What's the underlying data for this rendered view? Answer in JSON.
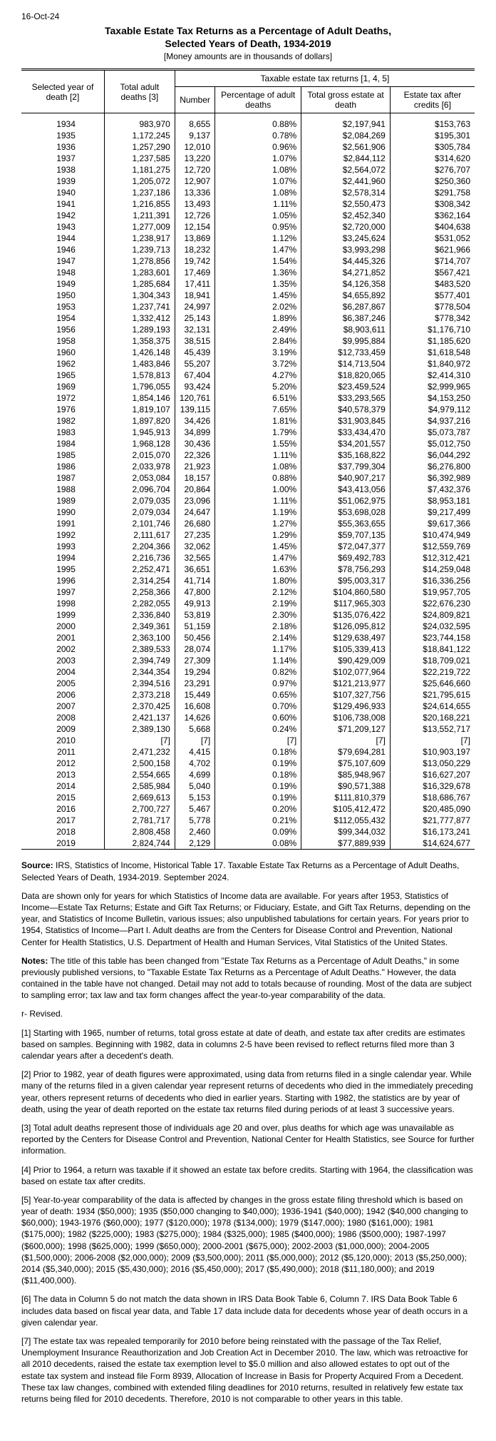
{
  "date": "16-Oct-24",
  "title_line1": "Taxable Estate Tax Returns as a Percentage of Adult Deaths,",
  "title_line2": "Selected Years of Death, 1934-2019",
  "subtitle": "[Money amounts are in thousands of dollars]",
  "headers": {
    "col1": "Selected year of death [2]",
    "col2": "Total adult deaths [3]",
    "group": "Taxable estate tax returns [1, 4, 5]",
    "g1": "Number",
    "g2": "Percentage of adult deaths",
    "g3": "Total gross estate at death",
    "g4": "Estate tax after credits [6]"
  },
  "rows": [
    [
      "1934",
      "983,970",
      "8,655",
      "0.88%",
      "$2,197,941",
      "$153,763"
    ],
    [
      "1935",
      "1,172,245",
      "9,137",
      "0.78%",
      "$2,084,269",
      "$195,301"
    ],
    [
      "1936",
      "1,257,290",
      "12,010",
      "0.96%",
      "$2,561,906",
      "$305,784"
    ],
    [
      "1937",
      "1,237,585",
      "13,220",
      "1.07%",
      "$2,844,112",
      "$314,620"
    ],
    [
      "1938",
      "1,181,275",
      "12,720",
      "1.08%",
      "$2,564,072",
      "$276,707"
    ],
    [
      "1939",
      "1,205,072",
      "12,907",
      "1.07%",
      "$2,441,960",
      "$250,360"
    ],
    [
      "1940",
      "1,237,186",
      "13,336",
      "1.08%",
      "$2,578,314",
      "$291,758"
    ],
    [
      "1941",
      "1,216,855",
      "13,493",
      "1.11%",
      "$2,550,473",
      "$308,342"
    ],
    [
      "1942",
      "1,211,391",
      "12,726",
      "1.05%",
      "$2,452,340",
      "$362,164"
    ],
    [
      "1943",
      "1,277,009",
      "12,154",
      "0.95%",
      "$2,720,000",
      "$404,638"
    ],
    [
      "1944",
      "1,238,917",
      "13,869",
      "1.12%",
      "$3,245,624",
      "$531,052"
    ],
    [
      "1946",
      "1,239,713",
      "18,232",
      "1.47%",
      "$3,993,298",
      "$621,966"
    ],
    [
      "1947",
      "1,278,856",
      "19,742",
      "1.54%",
      "$4,445,326",
      "$714,707"
    ],
    [
      "1948",
      "1,283,601",
      "17,469",
      "1.36%",
      "$4,271,852",
      "$567,421"
    ],
    [
      "1949",
      "1,285,684",
      "17,411",
      "1.35%",
      "$4,126,358",
      "$483,520"
    ],
    [
      "1950",
      "1,304,343",
      "18,941",
      "1.45%",
      "$4,655,892",
      "$577,401"
    ],
    [
      "1953",
      "1,237,741",
      "24,997",
      "2.02%",
      "$6,287,867",
      "$778,504"
    ],
    [
      "1954",
      "1,332,412",
      "25,143",
      "1.89%",
      "$6,387,246",
      "$778,342"
    ],
    [
      "1956",
      "1,289,193",
      "32,131",
      "2.49%",
      "$8,903,611",
      "$1,176,710"
    ],
    [
      "1958",
      "1,358,375",
      "38,515",
      "2.84%",
      "$9,995,884",
      "$1,185,620"
    ],
    [
      "1960",
      "1,426,148",
      "45,439",
      "3.19%",
      "$12,733,459",
      "$1,618,548"
    ],
    [
      "1962",
      "1,483,846",
      "55,207",
      "3.72%",
      "$14,713,504",
      "$1,840,972"
    ],
    [
      "1965",
      "1,578,813",
      "67,404",
      "4.27%",
      "$18,820,065",
      "$2,414,310"
    ],
    [
      "1969",
      "1,796,055",
      "93,424",
      "5.20%",
      "$23,459,524",
      "$2,999,965"
    ],
    [
      "1972",
      "1,854,146",
      "120,761",
      "6.51%",
      "$33,293,565",
      "$4,153,250"
    ],
    [
      "1976",
      "1,819,107",
      "139,115",
      "7.65%",
      "$40,578,379",
      "$4,979,112"
    ],
    [
      "1982",
      "1,897,820",
      "34,426",
      "1.81%",
      "$31,903,845",
      "$4,937,216"
    ],
    [
      "1983",
      "1,945,913",
      "34,899",
      "1.79%",
      "$33,434,470",
      "$5,073,787"
    ],
    [
      "1984",
      "1,968,128",
      "30,436",
      "1.55%",
      "$34,201,557",
      "$5,012,750"
    ],
    [
      "1985",
      "2,015,070",
      "22,326",
      "1.11%",
      "$35,168,822",
      "$6,044,292"
    ],
    [
      "1986",
      "2,033,978",
      "21,923",
      "1.08%",
      "$37,799,304",
      "$6,276,800"
    ],
    [
      "1987",
      "2,053,084",
      "18,157",
      "0.88%",
      "$40,907,217",
      "$6,392,989"
    ],
    [
      "1988",
      "2,096,704",
      "20,864",
      "1.00%",
      "$43,413,056",
      "$7,432,376"
    ],
    [
      "1989",
      "2,079,035",
      "23,096",
      "1.11%",
      "$51,062,975",
      "$8,953,181"
    ],
    [
      "1990",
      "2,079,034",
      "24,647",
      "1.19%",
      "$53,698,028",
      "$9,217,499"
    ],
    [
      "1991",
      "2,101,746",
      "26,680",
      "1.27%",
      "$55,363,655",
      "$9,617,366"
    ],
    [
      "1992",
      "2,111,617",
      "27,235",
      "1.29%",
      "$59,707,135",
      "$10,474,949"
    ],
    [
      "1993",
      "2,204,366",
      "32,062",
      "1.45%",
      "$72,047,377",
      "$12,559,769"
    ],
    [
      "1994",
      "2,216,736",
      "32,565",
      "1.47%",
      "$69,492,783",
      "$12,312,421"
    ],
    [
      "1995",
      "2,252,471",
      "36,651",
      "1.63%",
      "$78,756,293",
      "$14,259,048"
    ],
    [
      "1996",
      "2,314,254",
      "41,714",
      "1.80%",
      "$95,003,317",
      "$16,336,256"
    ],
    [
      "1997",
      "2,258,366",
      "47,800",
      "2.12%",
      "$104,860,580",
      "$19,957,705"
    ],
    [
      "1998",
      "2,282,055",
      "49,913",
      "2.19%",
      "$117,965,303",
      "$22,676,230"
    ],
    [
      "1999",
      "2,336,840",
      "53,819",
      "2.30%",
      "$135,076,422",
      "$24,809,821"
    ],
    [
      "2000",
      "2,349,361",
      "51,159",
      "2.18%",
      "$126,095,812",
      "$24,032,595"
    ],
    [
      "2001",
      "2,363,100",
      "50,456",
      "2.14%",
      "$129,638,497",
      "$23,744,158"
    ],
    [
      "2002",
      "2,389,533",
      "28,074",
      "1.17%",
      "$105,339,413",
      "$18,841,122"
    ],
    [
      "2003",
      "2,394,749",
      "27,309",
      "1.14%",
      "$90,429,009",
      "$18,709,021"
    ],
    [
      "2004",
      "2,344,354",
      "19,294",
      "0.82%",
      "$102,077,964",
      "$22,219,722"
    ],
    [
      "2005",
      "2,394,516",
      "23,291",
      "0.97%",
      "$121,213,977",
      "$25,646,660"
    ],
    [
      "2006",
      "2,373,218",
      "15,449",
      "0.65%",
      "$107,327,756",
      "$21,795,615"
    ],
    [
      "2007",
      "2,370,425",
      "16,608",
      "0.70%",
      "$129,496,933",
      "$24,614,655"
    ],
    [
      "2008",
      "2,421,137",
      "14,626",
      "0.60%",
      "$106,738,008",
      "$20,168,221"
    ],
    [
      "2009",
      "2,389,130",
      "5,668",
      "0.24%",
      "$71,209,127",
      "$13,552,717"
    ],
    [
      "2010",
      "[7]",
      "[7]",
      "[7]",
      "[7]",
      "[7]"
    ],
    [
      "2011",
      "2,471,232",
      "4,415",
      "0.18%",
      "$79,694,281",
      "$10,903,197"
    ],
    [
      "2012",
      "2,500,158",
      "4,702",
      "0.19%",
      "$75,107,609",
      "$13,050,229"
    ],
    [
      "2013",
      "2,554,665",
      "4,699",
      "0.18%",
      "$85,948,967",
      "$16,627,207"
    ],
    [
      "2014",
      "2,585,984",
      "5,040",
      "0.19%",
      "$90,571,388",
      "$16,329,678"
    ],
    [
      "2015",
      "2,669,613",
      "5,153",
      "0.19%",
      "$111,810,379",
      "$18,686,767"
    ],
    [
      "2016",
      "2,700,727",
      "5,467",
      "0.20%",
      "$105,412,472",
      "$20,485,090"
    ],
    [
      "2017",
      "2,781,717",
      "5,778",
      "0.21%",
      "$112,055,432",
      "$21,777,877"
    ],
    [
      "2018",
      "2,808,458",
      "2,460",
      "0.09%",
      "$99,344,032",
      "$16,173,241"
    ],
    [
      "2019",
      "2,824,744",
      "2,129",
      "0.08%",
      "$77,889,939",
      "$14,624,677"
    ]
  ],
  "notes": [
    "<b>Source:</b> IRS, Statistics of Income, Historical Table 17. Taxable Estate Tax Returns as a Percentage of Adult Deaths, Selected Years of Death, 1934-2019. September 2024.",
    "Data are shown only for years for which Statistics of Income data are available. For years after 1953, Statistics of Income—Estate Tax Returns;  Estate and Gift Tax Returns; or Fiduciary, Estate, and Gift Tax Returns, depending on the year, and Statistics of Income Bulletin, various issues; also unpublished tabulations for certain years.  For years prior to 1954, Statistics of Income—Part I. Adult deaths are from the Centers for Disease Control and Prevention, National Center for Health Statistics, U.S. Department of Health and Human Services, Vital Statistics of the United States.",
    "<b>Notes:</b> The title of this table has been changed from \"Estate Tax Returns as a Percentage of Adult Deaths,\" in some previously published versions, to \"Taxable Estate Tax Returns as a Percentage of Adult Deaths.\" However, the data contained in the table have not changed. Detail may not add to totals because of rounding.  Most of the data are subject to sampling error; tax law and tax form changes affect the year-to-year comparability of the data.",
    "r- Revised.",
    "[1]  Starting with 1965, number of returns, total gross estate at date of death, and estate tax after credits are estimates based on samples.  Beginning with 1982, data in columns 2-5 have been revised to reflect returns filed more than 3 calendar years after a decedent's death.",
    "[2]  Prior to 1982, year of death figures were approximated, using data from returns filed in a single calendar year.  While many of the returns filed in a given calendar year represent returns of decedents who died in the immediately preceding year, others represent returns of decedents who died in earlier years.  Starting with 1982, the statistics are by year of death, using the year of death reported on the estate tax returns filed during periods of at least 3 successive years.",
    "[3] Total adult deaths represent those of individuals age 20 and over, plus deaths for which age was unavailable as reported by the Centers for Disease Control and Prevention, National Center for Health Statistics, see Source for further information.",
    "[4]  Prior to 1964, a return was taxable if it showed an estate tax before credits.  Starting with 1964, the classification was based on estate tax after credits.",
    "[5]  Year-to-year comparability of the data is affected by changes in the gross estate filing threshold which is based on year of death: 1934 ($50,000); 1935 ($50,000 changing to $40,000); 1936-1941 ($40,000); 1942 ($40,000 changing to $60,000); 1943-1976 ($60,000); 1977 ($120,000); 1978 ($134,000); 1979 ($147,000); 1980 ($161,000); 1981 ($175,000); 1982 ($225,000); 1983 ($275,000); 1984 ($325,000); 1985 ($400,000); 1986 ($500,000); 1987-1997 ($600,000); 1998 ($625,000); 1999 ($650,000); 2000-2001 ($675,000); 2002-2003 ($1,000,000); 2004-2005 ($1,500,000); 2006-2008 ($2,000,000); 2009 ($3,500,000); 2011 ($5,000,000); 2012 ($5,120,000); 2013 ($5,250,000); 2014 ($5,340,000); 2015 ($5,430,000); 2016 ($5,450,000); 2017 ($5,490,000); 2018 ($11,180,000); and 2019 ($11,400,000).",
    "[6] The data in Column 5 do not match the data shown in IRS Data Book Table 6, Column 7. IRS Data Book Table 6 includes data based on fiscal year data, and Table 17 data include data for decedents whose year of death occurs in a given calendar year.",
    "[7] The estate tax was repealed temporarily for 2010 before being reinstated with the passage of the Tax Relief, Unemployment Insurance Reauthorization and Job Creation Act in December 2010.  The law, which was retroactive for all 2010 decedents, raised the estate tax exemption level to $5.0 million and also allowed estates to opt out of the estate tax system and instead file Form 8939, Allocation of Increase in Basis for Property Acquired From a Decedent.  These tax law changes, combined with extended filing deadlines for 2010 returns, resulted in relatively few estate tax returns being filed for 2010 decedents. Therefore, 2010 is not comparable to other years in this table."
  ]
}
